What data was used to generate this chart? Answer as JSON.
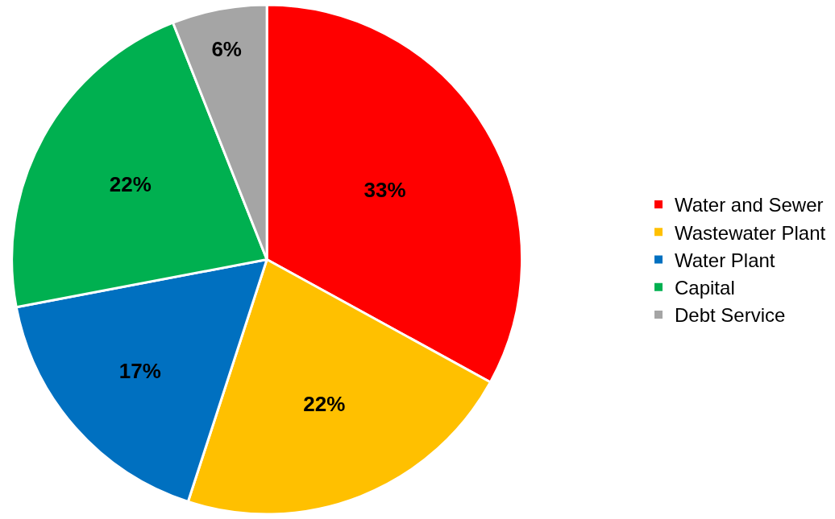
{
  "chart_data": {
    "type": "pie",
    "categories": [
      "Water and Sewer",
      "Wastewater Plant",
      "Water Plant",
      "Capital",
      "Debt Service"
    ],
    "values": [
      33,
      22,
      17,
      22,
      6
    ],
    "colors": [
      "#ff0000",
      "#ffc000",
      "#0070c0",
      "#00b050",
      "#a5a5a5"
    ],
    "value_labels": [
      "33%",
      "22%",
      "17%",
      "22%",
      "6%"
    ],
    "legend": "right"
  }
}
